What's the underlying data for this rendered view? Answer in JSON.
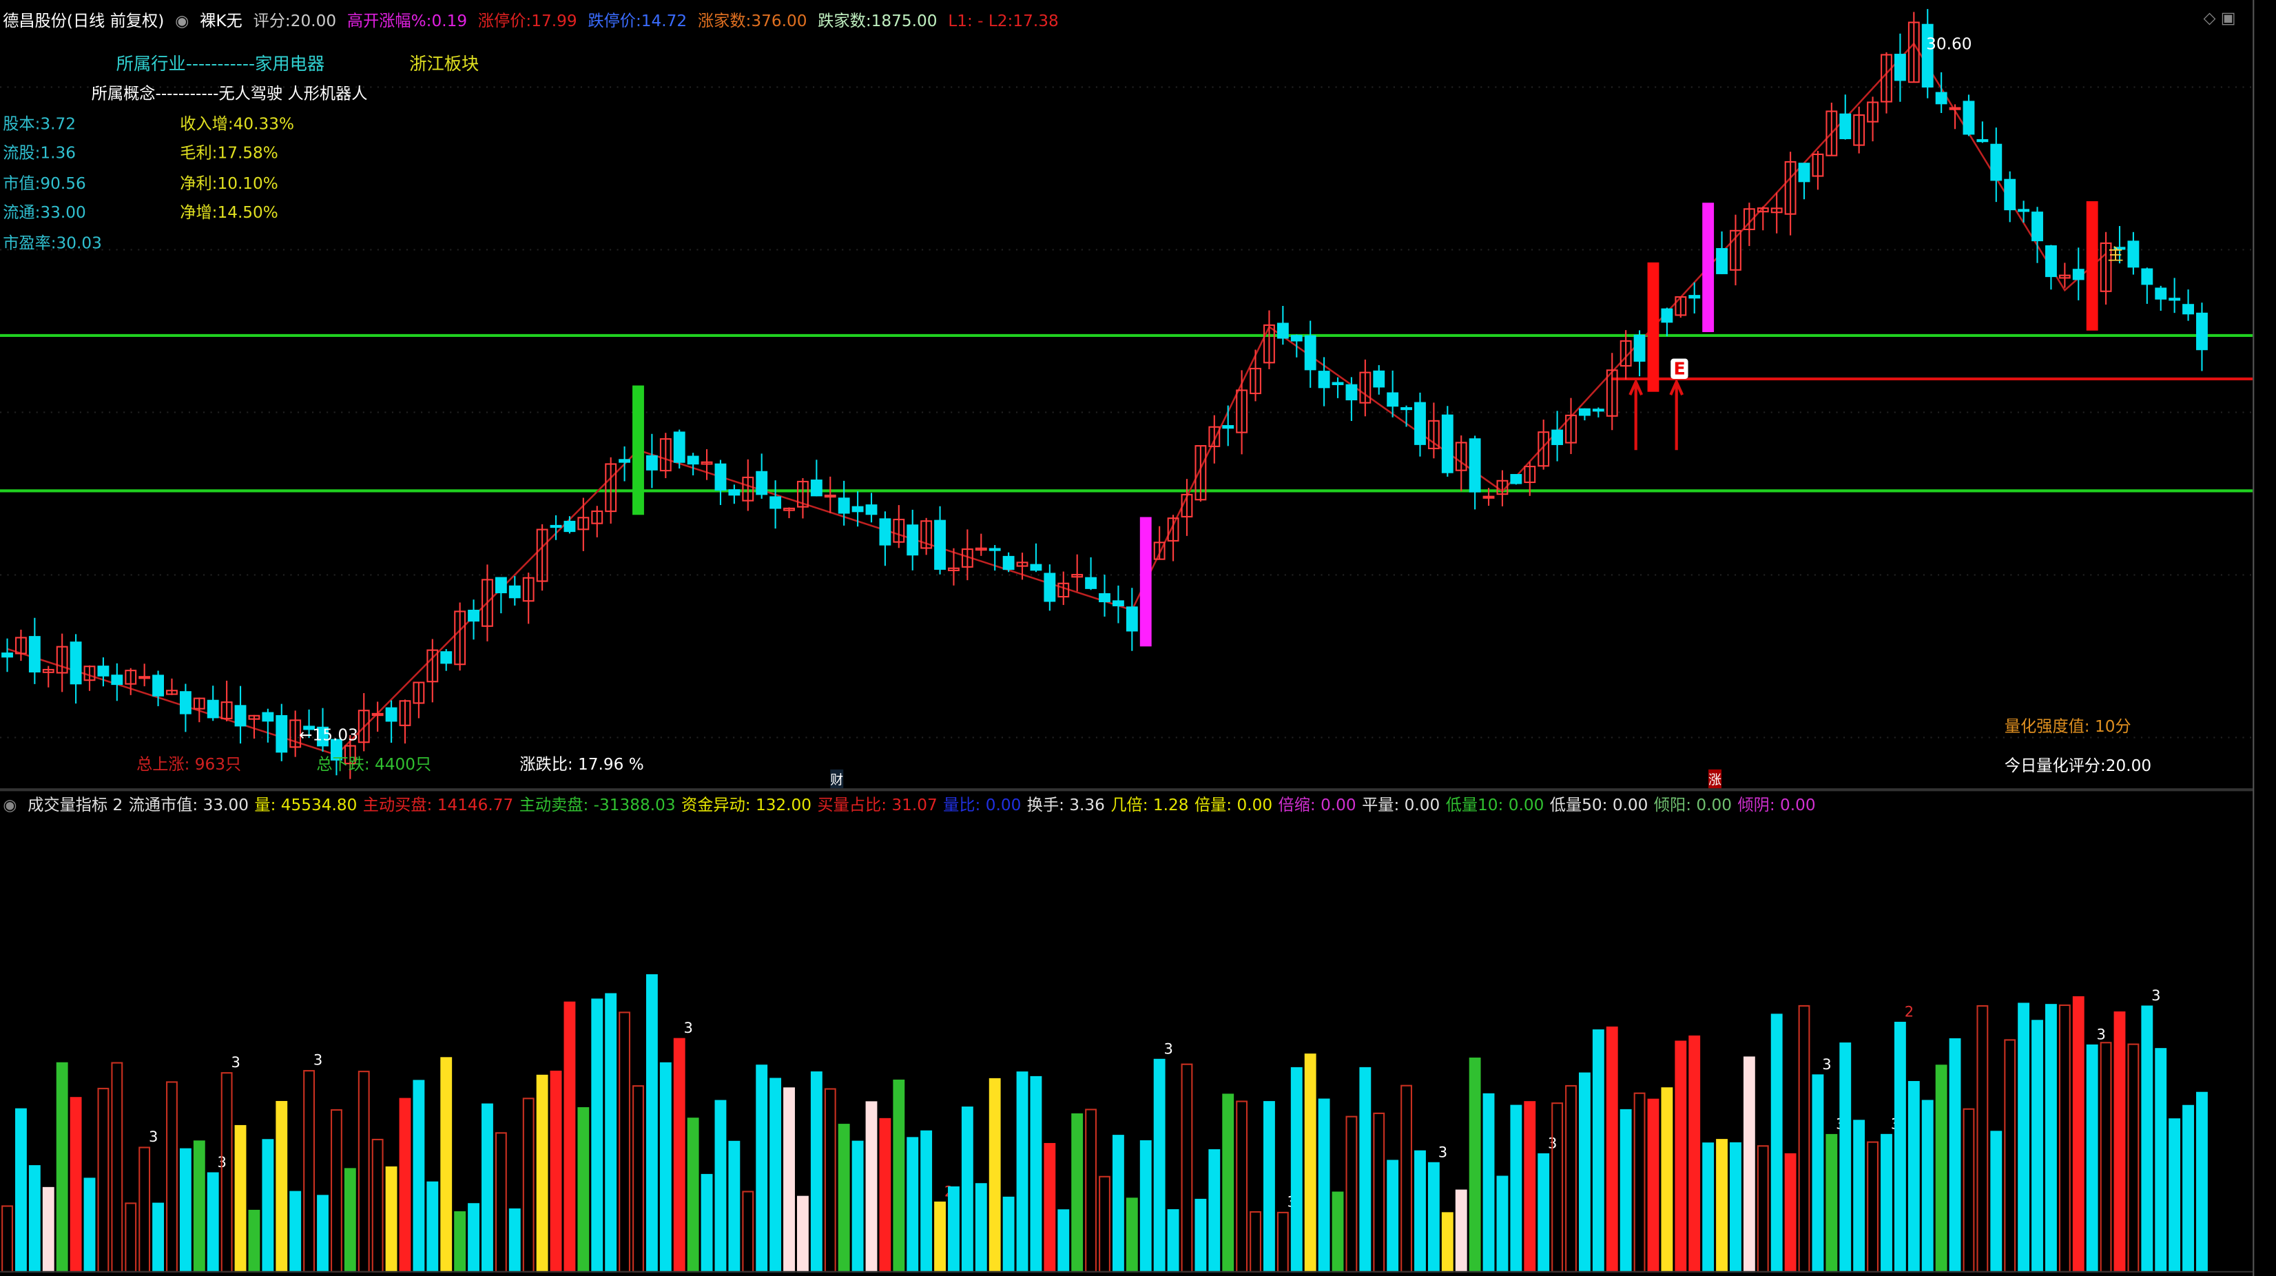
{
  "header": {
    "stock": "德昌股份(日线 前复权)",
    "mode": "裸K无",
    "score_label": "评分:",
    "score": "20.00",
    "gap_label": "高开涨幅%:",
    "gap": "0.19",
    "limit_up_label": "涨停价:",
    "limit_up": "17.99",
    "limit_down_label": "跌停价:",
    "limit_down": "14.72",
    "rise_count_label": "涨家数:",
    "rise_count": "376.00",
    "fall_count_label": "跌家数:",
    "fall_count": "1875.00",
    "levels": "L1: - L2:17.38"
  },
  "info": {
    "industry": "所属行业-----------家用电器",
    "region": "浙江板块",
    "concept": "所属概念-----------无人驾驶 人形机器人",
    "left": [
      "股本:3.72",
      "流股:1.36",
      "市值:90.56",
      "流通:33.00",
      "市盈率:30.03"
    ],
    "right": [
      "收入增:40.33%",
      "毛利:17.58%",
      "净利:10.10%",
      "净增:14.50%"
    ]
  },
  "main_footer": {
    "total_up": "总上涨: 963只",
    "total_down": "总下跌: 4400只",
    "ratio": "涨跌比: 17.96 %",
    "strength": "量化强度值: 10分",
    "today_score": "今日量化评分:20.00",
    "marker_cai": "财",
    "marker_zhang": "涨"
  },
  "annotations": {
    "high": "30.60",
    "low": "←15.03",
    "main": "主",
    "e_badge": "E"
  },
  "indicator_bar": [
    {
      "text": "成交量指标 2",
      "color": "#e0e0e0"
    },
    {
      "text": "流通市值: 33.00",
      "color": "#e0e0e0"
    },
    {
      "text": "量: 45534.80",
      "color": "#e6e600"
    },
    {
      "text": "主动买盘: 14146.77",
      "color": "#e02020"
    },
    {
      "text": "主动卖盘: -31388.03",
      "color": "#30c030"
    },
    {
      "text": "资金异动: 132.00",
      "color": "#e6e600"
    },
    {
      "text": "买量占比: 31.07",
      "color": "#e02020"
    },
    {
      "text": "量比: 0.00",
      "color": "#2030e0"
    },
    {
      "text": "换手: 3.36",
      "color": "#e0e0e0"
    },
    {
      "text": "几倍: 1.28",
      "color": "#e6e600"
    },
    {
      "text": "倍量: 0.00",
      "color": "#e6e600"
    },
    {
      "text": "倍缩: 0.00",
      "color": "#d030d0"
    },
    {
      "text": "平量: 0.00",
      "color": "#e0e0e0"
    },
    {
      "text": "低量10: 0.00",
      "color": "#30c030"
    },
    {
      "text": "低量50: 0.00",
      "color": "#e0e0e0"
    },
    {
      "text": "倾阳: 0.00",
      "color": "#70c070"
    },
    {
      "text": "倾阴: 0.00",
      "color": "#d030d0"
    }
  ],
  "chart_data": {
    "type": "candlestick",
    "price_range": [
      14.0,
      31.5
    ],
    "support_lines": [
      24.21,
      20.81
    ],
    "resistance_line": 23.26,
    "zigzag": [
      [
        0,
        17.35
      ],
      [
        24,
        15.03
      ],
      [
        46,
        21.7
      ],
      [
        82,
        18.2
      ],
      [
        92,
        24.4
      ],
      [
        109,
        20.8
      ],
      [
        139,
        30.6
      ],
      [
        150,
        25.2
      ],
      [
        153,
        26.0
      ]
    ],
    "highlight_candles": [
      {
        "index": 46,
        "color": "#20d020"
      },
      {
        "index": 83,
        "color": "#ff20ff"
      },
      {
        "index": 124,
        "color": "#ff20ff"
      },
      {
        "index": 120,
        "color": "#ff1010"
      },
      {
        "index": 152,
        "color": "#ff1010"
      }
    ],
    "candle_count": 161,
    "colors": {
      "up": "#ff3c3c",
      "down": "#00e0f0",
      "zigzag": "#c02020",
      "support": "#20d020",
      "resistance": "#e01010"
    }
  }
}
